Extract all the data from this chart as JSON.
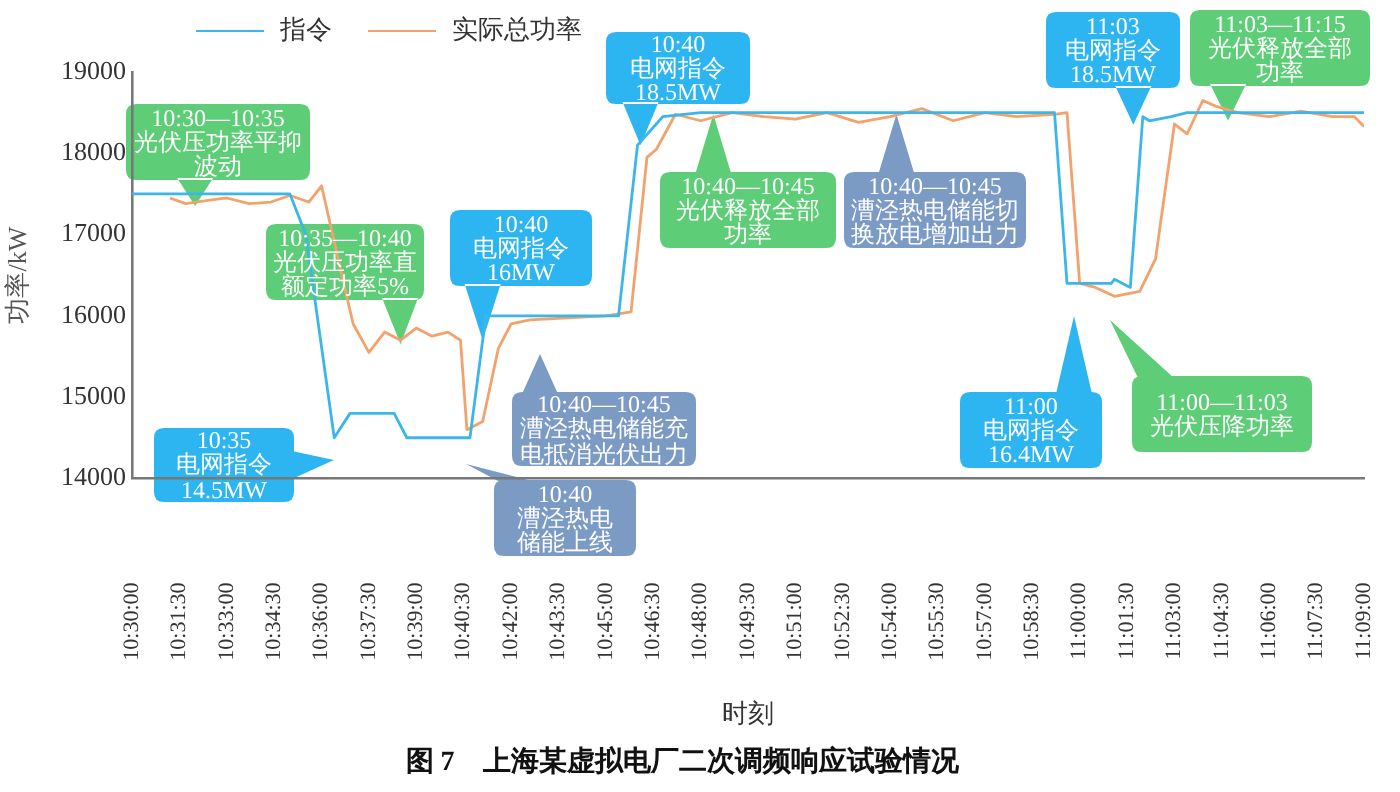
{
  "chart_data": {
    "type": "line",
    "title": "图 7　上海某虚拟电厂二次调频响应试验情况",
    "xlabel": "时刻",
    "ylabel": "功率/kW",
    "legend": "top",
    "marker": "none",
    "line_style": "solid",
    "xlim": [
      10.5,
      11.15
    ],
    "ylim": [
      14000,
      19000
    ],
    "yticks": [
      14000,
      15000,
      16000,
      17000,
      18000,
      19000
    ],
    "xticks": [
      {
        "value": 10.5,
        "label": "10:30:00"
      },
      {
        "value": 10.525,
        "label": "10:31:30"
      },
      {
        "value": 10.55,
        "label": "10:33:00"
      },
      {
        "value": 10.575,
        "label": "10:34:30"
      },
      {
        "value": 10.6,
        "label": "10:36:00"
      },
      {
        "value": 10.625,
        "label": "10:37:30"
      },
      {
        "value": 10.65,
        "label": "10:39:00"
      },
      {
        "value": 10.675,
        "label": "10:40:30"
      },
      {
        "value": 10.7,
        "label": "10:42:00"
      },
      {
        "value": 10.725,
        "label": "10:43:30"
      },
      {
        "value": 10.75,
        "label": "10:45:00"
      },
      {
        "value": 10.775,
        "label": "10:46:30"
      },
      {
        "value": 10.8,
        "label": "10:48:00"
      },
      {
        "value": 10.825,
        "label": "10:49:30"
      },
      {
        "value": 10.85,
        "label": "10:51:00"
      },
      {
        "value": 10.875,
        "label": "10:52:30"
      },
      {
        "value": 10.9,
        "label": "10:54:00"
      },
      {
        "value": 10.925,
        "label": "10:55:30"
      },
      {
        "value": 10.95,
        "label": "10:57:00"
      },
      {
        "value": 10.975,
        "label": "10:58:30"
      },
      {
        "value": 11.0,
        "label": "11:00:00"
      },
      {
        "value": 11.025,
        "label": "11:01:30"
      },
      {
        "value": 11.05,
        "label": "11:03:00"
      },
      {
        "value": 11.075,
        "label": "11:04:30"
      },
      {
        "value": 11.1,
        "label": "11:06:00"
      },
      {
        "value": 11.125,
        "label": "11:07:30"
      },
      {
        "value": 11.15,
        "label": "11:09:00"
      }
    ],
    "series": [
      {
        "name": "指令",
        "color": "#3cb6e8",
        "x": [
          10.5,
          10.5833,
          10.5917,
          10.6067,
          10.615,
          10.6383,
          10.645,
          10.6783,
          10.6867,
          10.7567,
          10.7667,
          10.78,
          10.8,
          10.9867,
          10.9933,
          11.0167,
          11.0183,
          11.0267,
          11.0333,
          11.0367,
          11.0483,
          11.0567,
          11.15
        ],
        "values": [
          17500,
          17500,
          17000,
          14500,
          14800,
          14800,
          14500,
          14500,
          16000,
          16000,
          18100,
          18450,
          18500,
          18500,
          16400,
          16400,
          16450,
          16350,
          18450,
          18400,
          18450,
          18500,
          18500
        ]
      },
      {
        "name": "实际总功率",
        "color": "#f2a26c",
        "x": [
          10.52,
          10.5283,
          10.54,
          10.55,
          10.5617,
          10.5733,
          10.5833,
          10.5933,
          10.6,
          10.6117,
          10.6167,
          10.625,
          10.6333,
          10.6417,
          10.65,
          10.6583,
          10.6667,
          10.6733,
          10.6767,
          10.685,
          10.6933,
          10.7,
          10.71,
          10.75,
          10.7633,
          10.7717,
          10.7767,
          10.7867,
          10.8,
          10.8167,
          10.8333,
          10.85,
          10.8667,
          10.8833,
          10.9,
          10.9167,
          10.9333,
          10.95,
          10.9667,
          10.9867,
          10.9933,
          11.0,
          11.0083,
          11.0183,
          11.0317,
          11.04,
          11.05,
          11.0567,
          11.065,
          11.0717,
          11.0833,
          11.1,
          11.1167,
          11.1333,
          11.145,
          11.15
        ],
        "values": [
          17450,
          17380,
          17420,
          17450,
          17380,
          17400,
          17480,
          17400,
          17600,
          16400,
          15900,
          15550,
          15800,
          15700,
          15850,
          15750,
          15800,
          15700,
          14600,
          14700,
          15600,
          15900,
          15950,
          16000,
          16050,
          17950,
          18050,
          18480,
          18400,
          18500,
          18450,
          18420,
          18500,
          18380,
          18450,
          18550,
          18400,
          18500,
          18450,
          18480,
          18500,
          16400,
          16350,
          16240,
          16300,
          16700,
          18360,
          18240,
          18650,
          18580,
          18500,
          18450,
          18520,
          18450,
          18450,
          18330
        ]
      }
    ],
    "annotations": [
      {
        "text": "10:30—10:35\n光伏压功率平抑波动",
        "x": 10.5333,
        "y": 17350
      },
      {
        "text": "10:35—10:40\n光伏压功率直额定功率5%",
        "x": 10.6417,
        "y": 15650
      },
      "10:35\n电网指令\n14.5MW",
      {
        "text": "10:40\n电网指令\n16MW",
        "x": 10.685,
        "y": 15700
      },
      "10:40—10:45\n漕泾热电储能充电抵消光伏出力",
      "10:40\n漕泾热电储能上线",
      {
        "text": "10:40\n电网指令\n18.5MW",
        "x": 10.7683,
        "y": 18100
      },
      {
        "text": "10:40—10:45\n光伏释放全部功率",
        "x": 10.8067,
        "y": 18480
      },
      {
        "text": "10:40—10:45\n漕泾热电储能切换放电增加出力",
        "x": 10.9033,
        "y": 18480
      },
      {
        "text": "11:03\n电网指令\n18.5MW",
        "x": 11.0283,
        "y": 18350
      },
      {
        "text": "11:03—11:15\n光伏释放全部功率",
        "x": 11.0783,
        "y": 18400
      },
      "11:00\n电网指令\n16.4MW",
      "11:00—11:03\n光伏压降功率"
    ]
  }
}
